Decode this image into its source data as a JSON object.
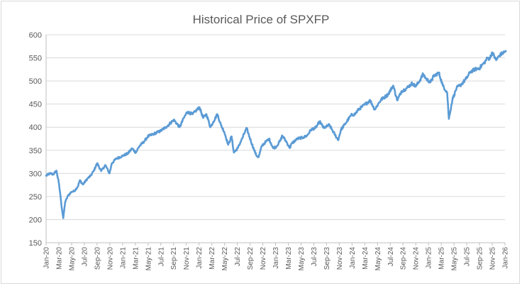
{
  "chart_data": {
    "type": "line",
    "title": "Historical Price of SPXFP",
    "xlabel": "",
    "ylabel": "",
    "ylim": [
      150,
      600
    ],
    "yticks": [
      150,
      200,
      250,
      300,
      350,
      400,
      450,
      500,
      550,
      600
    ],
    "x_range": [
      "2020-01-01",
      "2026-01-01"
    ],
    "xtick_labels": [
      "Jan-20",
      "Mar-20",
      "May-20",
      "Jul-20",
      "Sep-20",
      "Nov-20",
      "Jan-21",
      "Mar-21",
      "May-21",
      "Jul-21",
      "Sep-21",
      "Nov-21",
      "Jan-22",
      "Mar-22",
      "May-22",
      "Jul-22",
      "Sep-22",
      "Nov-22",
      "Jan-23",
      "Mar-23",
      "May-23",
      "Jul-23",
      "Sep-23",
      "Nov-23",
      "Jan-24",
      "Mar-24",
      "May-24",
      "Jul-24",
      "Sep-24",
      "Nov-24",
      "Jan-25",
      "Mar-25",
      "May-25",
      "Jul-25",
      "Sep-25",
      "Nov-25",
      "Jan-26"
    ],
    "grid": true,
    "legend": "none",
    "series": [
      {
        "name": "SPXFP",
        "color": "#5b9bd5",
        "points": [
          [
            "2020-01-01",
            295
          ],
          [
            "2020-01-20",
            300
          ],
          [
            "2020-02-05",
            298
          ],
          [
            "2020-02-19",
            306
          ],
          [
            "2020-03-01",
            282
          ],
          [
            "2020-03-10",
            250
          ],
          [
            "2020-03-16",
            225
          ],
          [
            "2020-03-23",
            203
          ],
          [
            "2020-04-01",
            238
          ],
          [
            "2020-04-15",
            252
          ],
          [
            "2020-05-01",
            260
          ],
          [
            "2020-05-15",
            262
          ],
          [
            "2020-06-01",
            272
          ],
          [
            "2020-06-10",
            285
          ],
          [
            "2020-06-25",
            276
          ],
          [
            "2020-07-15",
            288
          ],
          [
            "2020-08-01",
            295
          ],
          [
            "2020-08-15",
            305
          ],
          [
            "2020-09-01",
            322
          ],
          [
            "2020-09-20",
            305
          ],
          [
            "2020-10-10",
            318
          ],
          [
            "2020-10-30",
            300
          ],
          [
            "2020-11-10",
            322
          ],
          [
            "2020-12-01",
            332
          ],
          [
            "2021-01-01",
            338
          ],
          [
            "2021-01-25",
            343
          ],
          [
            "2021-02-15",
            354
          ],
          [
            "2021-03-05",
            345
          ],
          [
            "2021-03-20",
            358
          ],
          [
            "2021-04-15",
            370
          ],
          [
            "2021-05-01",
            380
          ],
          [
            "2021-06-01",
            386
          ],
          [
            "2021-07-01",
            392
          ],
          [
            "2021-08-01",
            402
          ],
          [
            "2021-09-02",
            416
          ],
          [
            "2021-09-30",
            400
          ],
          [
            "2021-10-20",
            420
          ],
          [
            "2021-11-05",
            433
          ],
          [
            "2021-12-01",
            428
          ],
          [
            "2021-12-15",
            435
          ],
          [
            "2022-01-03",
            443
          ],
          [
            "2022-01-20",
            420
          ],
          [
            "2022-02-05",
            428
          ],
          [
            "2022-02-24",
            400
          ],
          [
            "2022-03-10",
            412
          ],
          [
            "2022-03-29",
            428
          ],
          [
            "2022-04-15",
            405
          ],
          [
            "2022-05-01",
            390
          ],
          [
            "2022-05-20",
            362
          ],
          [
            "2022-06-05",
            380
          ],
          [
            "2022-06-16",
            345
          ],
          [
            "2022-07-05",
            355
          ],
          [
            "2022-07-25",
            375
          ],
          [
            "2022-08-16",
            398
          ],
          [
            "2022-09-05",
            370
          ],
          [
            "2022-09-20",
            352
          ],
          [
            "2022-09-30",
            340
          ],
          [
            "2022-10-12",
            335
          ],
          [
            "2022-10-28",
            360
          ],
          [
            "2022-11-15",
            368
          ],
          [
            "2022-12-01",
            375
          ],
          [
            "2022-12-20",
            355
          ],
          [
            "2023-01-05",
            358
          ],
          [
            "2023-01-25",
            372
          ],
          [
            "2023-02-02",
            382
          ],
          [
            "2023-02-20",
            370
          ],
          [
            "2023-03-10",
            355
          ],
          [
            "2023-03-20",
            365
          ],
          [
            "2023-04-15",
            375
          ],
          [
            "2023-05-15",
            378
          ],
          [
            "2023-06-01",
            382
          ],
          [
            "2023-06-20",
            395
          ],
          [
            "2023-07-10",
            398
          ],
          [
            "2023-07-31",
            412
          ],
          [
            "2023-08-20",
            398
          ],
          [
            "2023-09-15",
            405
          ],
          [
            "2023-10-01",
            392
          ],
          [
            "2023-10-27",
            372
          ],
          [
            "2023-11-10",
            395
          ],
          [
            "2023-12-01",
            408
          ],
          [
            "2023-12-28",
            426
          ],
          [
            "2024-01-15",
            428
          ],
          [
            "2024-02-01",
            438
          ],
          [
            "2024-02-20",
            445
          ],
          [
            "2024-03-28",
            458
          ],
          [
            "2024-04-19",
            438
          ],
          [
            "2024-05-05",
            450
          ],
          [
            "2024-05-20",
            460
          ],
          [
            "2024-06-20",
            470
          ],
          [
            "2024-07-16",
            490
          ],
          [
            "2024-08-05",
            458
          ],
          [
            "2024-08-25",
            478
          ],
          [
            "2024-09-15",
            483
          ],
          [
            "2024-10-15",
            495
          ],
          [
            "2024-11-01",
            488
          ],
          [
            "2024-11-25",
            505
          ],
          [
            "2024-12-06",
            515
          ],
          [
            "2024-12-20",
            505
          ],
          [
            "2025-01-10",
            497
          ],
          [
            "2025-01-25",
            510
          ],
          [
            "2025-02-19",
            518
          ],
          [
            "2025-03-10",
            490
          ],
          [
            "2025-03-31",
            475
          ],
          [
            "2025-04-08",
            418
          ],
          [
            "2025-04-15",
            435
          ],
          [
            "2025-04-25",
            460
          ],
          [
            "2025-05-15",
            485
          ],
          [
            "2025-06-05",
            492
          ],
          [
            "2025-06-30",
            505
          ],
          [
            "2025-07-20",
            520
          ],
          [
            "2025-08-10",
            525
          ],
          [
            "2025-09-01",
            528
          ],
          [
            "2025-09-25",
            540
          ],
          [
            "2025-10-10",
            550
          ],
          [
            "2025-10-20",
            548
          ],
          [
            "2025-11-01",
            562
          ],
          [
            "2025-11-20",
            545
          ],
          [
            "2025-12-05",
            555
          ],
          [
            "2025-12-20",
            560
          ],
          [
            "2026-01-05",
            565
          ]
        ]
      }
    ]
  }
}
